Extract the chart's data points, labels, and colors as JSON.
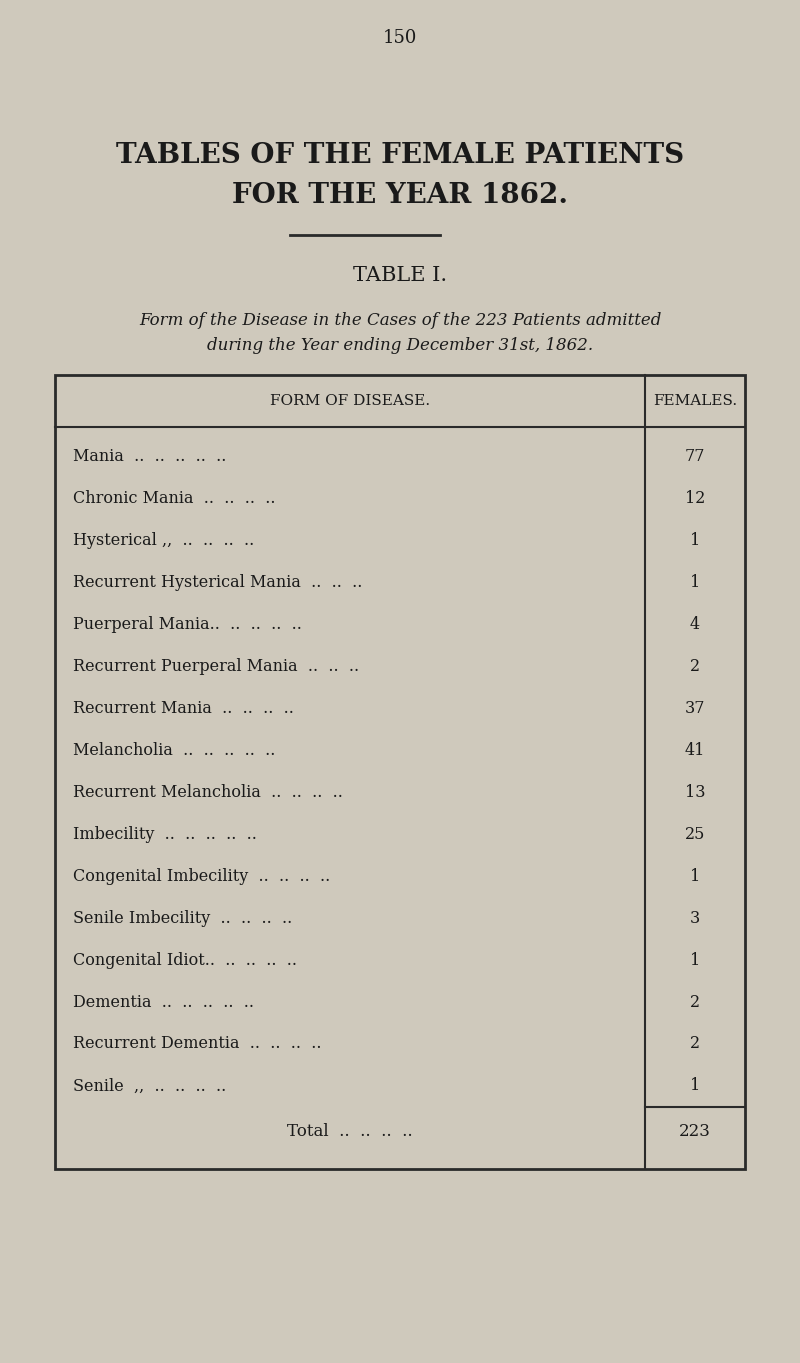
{
  "page_number": "150",
  "main_title_line1": "TABLES OF THE FEMALE PATIENTS",
  "main_title_line2": "FOR THE YEAR 1862.",
  "table_title": "TABLE I.",
  "subtitle_line1": "Form of the Disease in the Cases of the 223 Patients admitted",
  "subtitle_line2": "during the Year ending December 31st, 1862.",
  "col_header_left": "FORM OF DISEASE.",
  "col_header_right": "FEMALES.",
  "rows": [
    {
      "label": "Mania  ..  ..  ..  ..  ..",
      "value": "77"
    },
    {
      "label": "Chronic Mania  ..  ..  ..  ..",
      "value": "12"
    },
    {
      "label": "Hysterical ,,  ..  ..  ..  ..",
      "value": "1"
    },
    {
      "label": "Recurrent Hysterical Mania  ..  ..  ..",
      "value": "1"
    },
    {
      "label": "Puerperal Mania..  ..  ..  ..  ..",
      "value": "4"
    },
    {
      "label": "Recurrent Puerperal Mania  ..  ..  ..",
      "value": "2"
    },
    {
      "label": "Recurrent Mania  ..  ..  ..  ..",
      "value": "37"
    },
    {
      "label": "Melancholia  ..  ..  ..  ..  ..",
      "value": "41"
    },
    {
      "label": "Recurrent Melancholia  ..  ..  ..  ..",
      "value": "13"
    },
    {
      "label": "Imbecility  ..  ..  ..  ..  ..",
      "value": "25"
    },
    {
      "label": "Congenital Imbecility  ..  ..  ..  ..",
      "value": "1"
    },
    {
      "label": "Senile Imbecility  ..  ..  ..  ..",
      "value": "3"
    },
    {
      "label": "Congenital Idiot..  ..  ..  ..  ..",
      "value": "1"
    },
    {
      "label": "Dementia  ..  ..  ..  ..  ..",
      "value": "2"
    },
    {
      "label": "Recurrent Dementia  ..  ..  ..  ..",
      "value": "2"
    },
    {
      "label": "Senile  ,,  ..  ..  ..  ..",
      "value": "1"
    }
  ],
  "total_label": "Total  ..  ..  ..  ..",
  "total_value": "223",
  "bg_color": "#cfc9bc",
  "text_color": "#1a1a1a",
  "table_bg": "#d4cfc2",
  "border_color": "#2a2a2a"
}
